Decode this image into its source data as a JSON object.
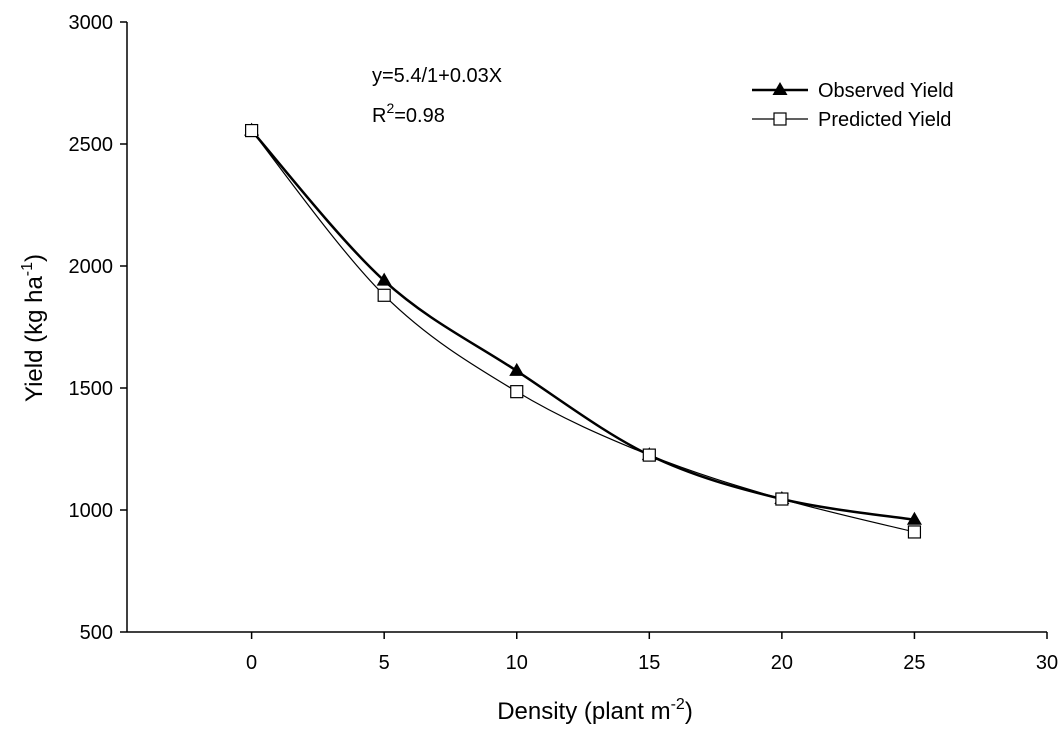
{
  "chart_data": {
    "type": "line",
    "x_ticks": [
      0,
      5,
      10,
      15,
      20,
      25,
      30
    ],
    "y_ticks": [
      500,
      1000,
      1500,
      2000,
      2500,
      3000
    ],
    "xlim": [
      -4.7,
      30
    ],
    "ylim": [
      500,
      3000
    ],
    "grid": false,
    "legend_position": "top-right",
    "xlabel": {
      "text": "Density (plant m",
      "sup": "-2",
      "suffix": ")"
    },
    "ylabel": {
      "text": "Yield (kg ha",
      "sup": "-1",
      "suffix": ")"
    },
    "annotations": {
      "equation": "y=5.4/1+0.03X",
      "r2_prefix": "R",
      "r2_sup": "2",
      "r2_value": "=0.98"
    },
    "series": [
      {
        "name": "Observed Yield",
        "marker": "filled-triangle",
        "color": "#000000",
        "x": [
          0,
          5,
          10,
          15,
          20,
          25
        ],
        "y": [
          2555,
          1940,
          1570,
          1225,
          1045,
          960
        ]
      },
      {
        "name": "Predicted Yield",
        "marker": "open-square",
        "color": "#000000",
        "x": [
          0,
          5,
          10,
          15,
          20,
          25
        ],
        "y": [
          2555,
          1880,
          1485,
          1225,
          1045,
          910
        ]
      }
    ]
  }
}
